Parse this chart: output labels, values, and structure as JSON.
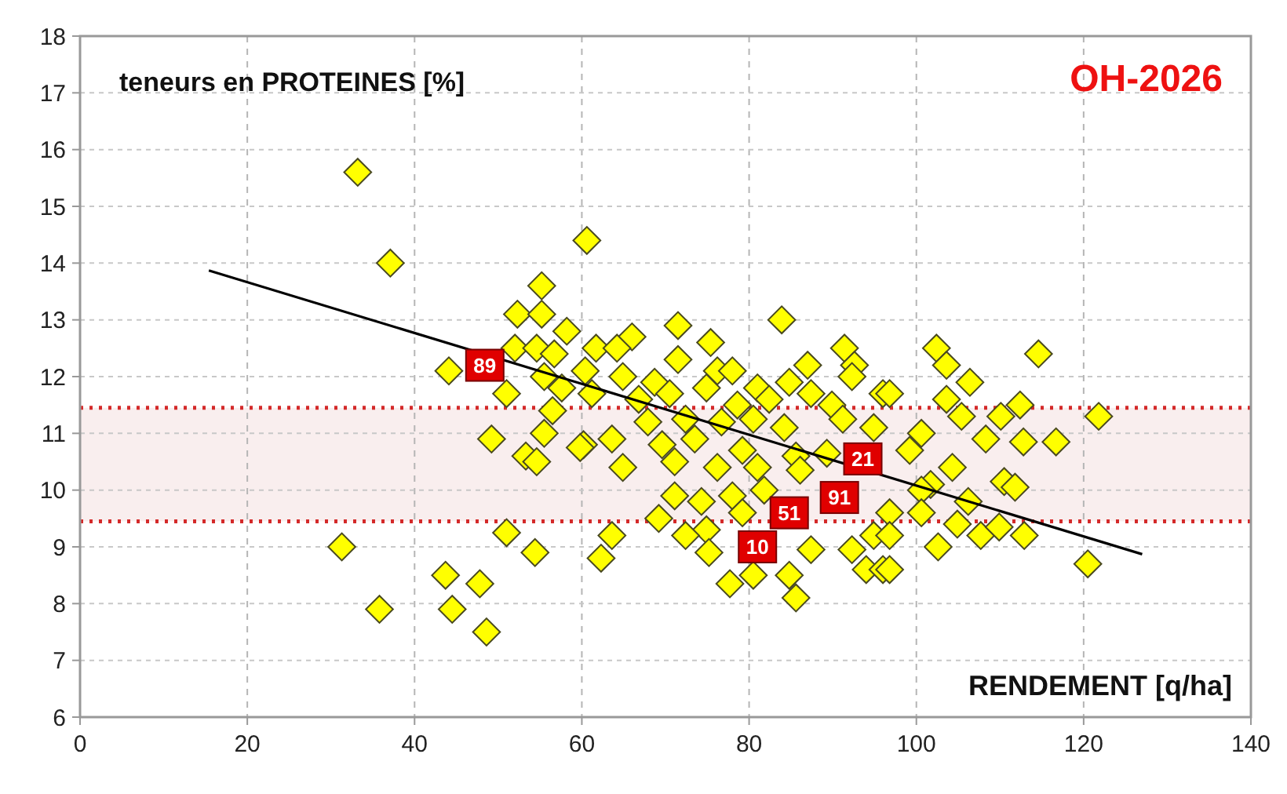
{
  "chart_data": {
    "type": "scatter",
    "title": "OH-2026",
    "xlabel": "RENDEMENT [q/ha]",
    "ylabel": "teneurs en PROTEINES [%]",
    "xlim": [
      0,
      140
    ],
    "xticks": [
      0,
      20,
      40,
      60,
      80,
      100,
      120,
      140
    ],
    "ylim": [
      6,
      18
    ],
    "yticks": [
      6,
      7,
      8,
      9,
      10,
      11,
      12,
      13,
      14,
      15,
      16,
      17,
      18
    ],
    "grid": true,
    "bands": [
      {
        "axis": "y",
        "from": 9.45,
        "to": 11.45,
        "color": "#f9eeee"
      }
    ],
    "ref_lines": [
      {
        "axis": "y",
        "value": 11.45,
        "color": "#d42a2a",
        "line_style": "dotted"
      },
      {
        "axis": "y",
        "value": 9.45,
        "color": "#d42a2a",
        "line_style": "dotted"
      }
    ],
    "series": [
      {
        "color": "#ffff00",
        "marker": "diamond",
        "x": [
          33.2,
          37.1,
          31.3,
          35.8,
          43.7,
          44.5,
          47.8,
          48.6,
          44.1,
          49.2,
          51,
          54.4,
          55.2,
          52.3,
          55.2,
          58.2,
          60.6,
          52,
          54.6,
          56.7,
          55.5,
          57.6,
          51,
          56.5,
          55.5,
          53.3,
          54.6,
          60.2,
          60.4,
          71.5,
          83.9,
          66,
          61.7,
          64.2,
          75.4,
          71.5,
          64.9,
          68.7,
          76.2,
          78,
          81,
          84.8,
          87,
          91.4,
          92.6,
          92.3,
          61.2,
          66.8,
          70.5,
          74.9,
          78.6,
          82.4,
          87.4,
          89.9,
          96,
          67.9,
          72.4,
          76.7,
          80.5,
          84.2,
          91.2,
          94.9,
          59.8,
          63.6,
          69.6,
          73.5,
          79.2,
          85.6,
          89.3,
          64.9,
          71.1,
          76.2,
          81,
          86.1,
          71.1,
          74.3,
          78,
          81.8,
          69.2,
          74.9,
          79.2,
          72.4,
          63.6,
          94.9,
          96.8,
          62.3,
          75.2,
          77.7,
          80.5,
          84.8,
          85.6,
          87.4,
          92.3,
          94,
          96,
          114.6,
          102.4,
          103.6,
          106.4,
          103.6,
          96.8,
          112.4,
          105.4,
          110.1,
          121.8,
          100.6,
          108.3,
          112.8,
          116.7,
          99.2,
          104.3,
          101.7,
          110.5,
          111.8,
          100.6,
          106.2,
          100.6,
          104.9,
          107.7,
          109.9,
          112.9,
          96.8,
          102.6,
          96.8,
          120.5
        ],
        "values": [
          15.6,
          14.0,
          9.0,
          7.9,
          8.5,
          7.9,
          8.35,
          7.5,
          12.1,
          10.9,
          9.25,
          8.9,
          13.6,
          13.1,
          13.1,
          12.8,
          14.4,
          12.5,
          12.5,
          12.4,
          12.0,
          11.8,
          11.7,
          11.4,
          11.0,
          10.6,
          10.5,
          10.8,
          12.1,
          12.9,
          13.0,
          12.7,
          12.5,
          12.5,
          12.6,
          12.3,
          12.0,
          11.9,
          12.1,
          12.1,
          11.8,
          11.9,
          12.2,
          12.5,
          12.2,
          12.0,
          11.7,
          11.6,
          11.7,
          11.8,
          11.5,
          11.6,
          11.7,
          11.5,
          11.7,
          11.2,
          11.25,
          11.2,
          11.25,
          11.1,
          11.25,
          11.1,
          10.75,
          10.9,
          10.8,
          10.9,
          10.7,
          10.6,
          10.65,
          10.4,
          10.5,
          10.4,
          10.4,
          10.35,
          9.9,
          9.8,
          9.9,
          10.0,
          9.5,
          9.3,
          9.6,
          9.2,
          9.2,
          9.2,
          9.6,
          8.8,
          8.9,
          8.35,
          8.5,
          8.5,
          8.1,
          8.95,
          8.95,
          8.6,
          8.6,
          12.4,
          12.5,
          12.2,
          11.9,
          11.6,
          11.7,
          11.5,
          11.3,
          11.3,
          11.3,
          11.0,
          10.9,
          10.85,
          10.85,
          10.7,
          10.4,
          10.1,
          10.15,
          10.05,
          10.0,
          9.8,
          9.6,
          9.4,
          9.2,
          9.35,
          9.2,
          9.2,
          9.0,
          8.6,
          8.7
        ]
      },
      {
        "type": "line",
        "marker": "none",
        "color": "#000000",
        "x": [
          15.4,
          127
        ],
        "values": [
          13.87,
          8.87
        ]
      }
    ],
    "annotations": [
      {
        "text": "89",
        "x": 48.4,
        "y": 12.2
      },
      {
        "text": "21",
        "x": 93.6,
        "y": 10.55
      },
      {
        "text": "91",
        "x": 90.8,
        "y": 9.87
      },
      {
        "text": "51",
        "x": 84.8,
        "y": 9.6
      },
      {
        "text": "10",
        "x": 81,
        "y": 9.0
      }
    ]
  }
}
